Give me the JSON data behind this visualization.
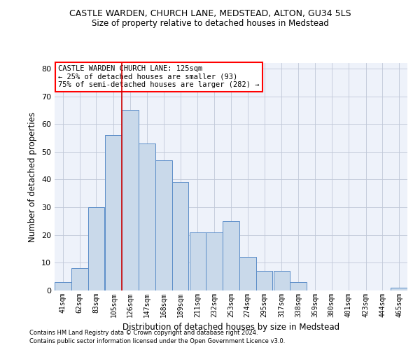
{
  "title1": "CASTLE WARDEN, CHURCH LANE, MEDSTEAD, ALTON, GU34 5LS",
  "title2": "Size of property relative to detached houses in Medstead",
  "xlabel": "Distribution of detached houses by size in Medstead",
  "ylabel": "Number of detached properties",
  "bin_labels": [
    "41sqm",
    "62sqm",
    "83sqm",
    "105sqm",
    "126sqm",
    "147sqm",
    "168sqm",
    "189sqm",
    "211sqm",
    "232sqm",
    "253sqm",
    "274sqm",
    "295sqm",
    "317sqm",
    "338sqm",
    "359sqm",
    "380sqm",
    "401sqm",
    "423sqm",
    "444sqm",
    "465sqm"
  ],
  "bin_left_edges": [
    41,
    62,
    83,
    105,
    126,
    147,
    168,
    189,
    211,
    232,
    253,
    274,
    295,
    317,
    338,
    359,
    380,
    401,
    423,
    444,
    465
  ],
  "bin_width": 21,
  "bar_heights": [
    3,
    8,
    30,
    56,
    65,
    53,
    47,
    39,
    21,
    21,
    25,
    12,
    7,
    7,
    3,
    0,
    0,
    0,
    0,
    0,
    1
  ],
  "bar_color": "#c9d9ea",
  "bar_edge_color": "#5b8dc8",
  "grid_color": "#c0c8d8",
  "background_color": "#eef2fa",
  "red_line_x": 126,
  "ylim_max": 82,
  "yticks": [
    0,
    10,
    20,
    30,
    40,
    50,
    60,
    70,
    80
  ],
  "annotation_title": "CASTLE WARDEN CHURCH LANE: 125sqm",
  "annotation_line1": "← 25% of detached houses are smaller (93)",
  "annotation_line2": "75% of semi-detached houses are larger (282) →",
  "footnote1": "Contains HM Land Registry data © Crown copyright and database right 2024.",
  "footnote2": "Contains public sector information licensed under the Open Government Licence v3.0."
}
